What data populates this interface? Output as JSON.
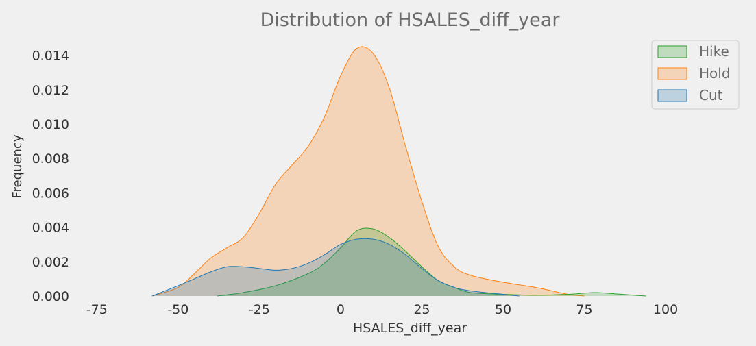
{
  "chart_data": {
    "type": "area",
    "title": "Distribution of HSALES_diff_year",
    "xlabel": "HSALES_diff_year",
    "ylabel": "Frequency",
    "xlim": [
      -79.5,
      104
    ],
    "ylim": [
      0,
      0.0153
    ],
    "xticks": [
      -75,
      -50,
      -25,
      0,
      25,
      50,
      75,
      100
    ],
    "xtick_labels": [
      "-75",
      "-50",
      "-25",
      "0",
      "25",
      "50",
      "75",
      "100"
    ],
    "yticks": [
      0,
      0.002,
      0.004,
      0.006,
      0.008,
      0.01,
      0.012,
      0.014
    ],
    "ytick_labels": [
      "0.000",
      "0.002",
      "0.004",
      "0.006",
      "0.008",
      "0.010",
      "0.012",
      "0.014"
    ],
    "grid": false,
    "legend_position": "top-right",
    "series": [
      {
        "name": "Hold",
        "color": "#ff7f0e",
        "x": [
          -58,
          -50,
          -45,
          -40,
          -35,
          -30,
          -25,
          -20,
          -15,
          -10,
          -5,
          0,
          5,
          10,
          15,
          20,
          25,
          30,
          35,
          40,
          50,
          60,
          65,
          70,
          75
        ],
        "y": [
          0,
          0.0005,
          0.0013,
          0.0022,
          0.0028,
          0.0034,
          0.0048,
          0.0065,
          0.0076,
          0.0087,
          0.0104,
          0.0128,
          0.0144,
          0.0141,
          0.0121,
          0.0087,
          0.0055,
          0.0029,
          0.0017,
          0.0012,
          0.0008,
          0.0005,
          0.0003,
          0.0001,
          0
        ]
      },
      {
        "name": "Hike",
        "color": "#2ca02c",
        "x": [
          -38,
          -30,
          -20,
          -10,
          -5,
          0,
          5,
          10,
          15,
          20,
          25,
          30,
          35,
          40,
          50,
          60,
          70,
          78,
          85,
          94
        ],
        "y": [
          0,
          0.0002,
          0.0006,
          0.0013,
          0.0019,
          0.0028,
          0.0038,
          0.0039,
          0.0034,
          0.0026,
          0.0017,
          0.0009,
          0.0005,
          0.0002,
          0.0001,
          5e-05,
          0.0001,
          0.0002,
          0.00012,
          0
        ]
      },
      {
        "name": "Cut",
        "color": "#1f77b4",
        "x": [
          -58,
          -50,
          -45,
          -40,
          -35,
          -30,
          -25,
          -20,
          -15,
          -10,
          -5,
          0,
          5,
          10,
          15,
          20,
          25,
          30,
          35,
          40,
          50,
          55
        ],
        "y": [
          0,
          0.0006,
          0.001,
          0.0014,
          0.0017,
          0.0017,
          0.0016,
          0.0015,
          0.0016,
          0.0019,
          0.0024,
          0.003,
          0.0033,
          0.0033,
          0.003,
          0.0024,
          0.0016,
          0.0009,
          0.0005,
          0.0003,
          0.0001,
          0
        ]
      }
    ],
    "legend": [
      "Hike",
      "Hold",
      "Cut"
    ]
  }
}
